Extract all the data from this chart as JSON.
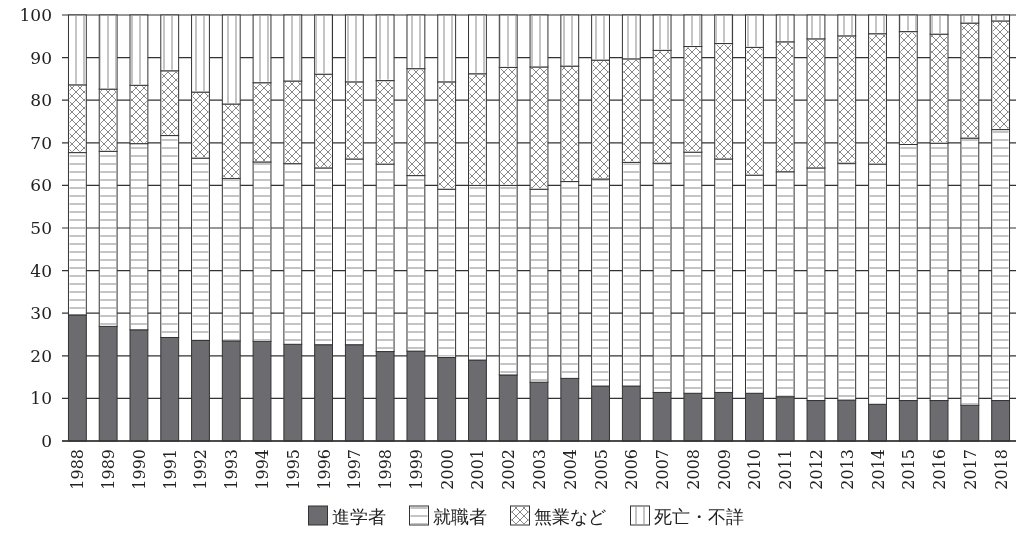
{
  "chart_data": {
    "type": "bar",
    "stacked": true,
    "categories": [
      "1988",
      "1989",
      "1990",
      "1991",
      "1992",
      "1993",
      "1994",
      "1995",
      "1996",
      "1997",
      "1998",
      "1999",
      "2000",
      "2001",
      "2002",
      "2003",
      "2004",
      "2005",
      "2006",
      "2007",
      "2008",
      "2009",
      "2010",
      "2011",
      "2012",
      "2013",
      "2014",
      "2015",
      "2016",
      "2017",
      "2018"
    ],
    "series": [
      {
        "name": "進学者",
        "color": "#6b6b70",
        "values": [
          29.6,
          26.9,
          26.1,
          24.3,
          23.6,
          23.5,
          23.4,
          22.7,
          22.6,
          22.6,
          21.0,
          21.1,
          19.6,
          19.0,
          15.5,
          13.8,
          14.7,
          12.9,
          12.9,
          11.4,
          11.2,
          11.4,
          11.2,
          10.4,
          9.5,
          9.6,
          8.6,
          9.5,
          9.5,
          8.4,
          9.5
        ]
      },
      {
        "name": "就職者",
        "color": "#ffffff",
        "values": [
          38.1,
          41.1,
          43.7,
          47.4,
          42.8,
          38.1,
          42.1,
          42.4,
          41.5,
          43.6,
          44.0,
          41.2,
          39.5,
          41.0,
          44.5,
          45.3,
          46.2,
          48.6,
          52.5,
          53.8,
          56.6,
          54.8,
          51.2,
          52.8,
          54.6,
          55.6,
          56.4,
          60.1,
          60.4,
          62.7,
          63.6
        ]
      },
      {
        "name": "無業など",
        "color": "#ffffff",
        "values": [
          15.9,
          14.6,
          13.7,
          15.2,
          15.5,
          17.5,
          18.6,
          19.4,
          22.0,
          18.1,
          19.6,
          25.1,
          25.2,
          26.2,
          27.7,
          28.7,
          27.1,
          27.9,
          24.3,
          26.5,
          24.8,
          27.1,
          30.0,
          30.5,
          30.3,
          29.9,
          30.6,
          26.5,
          25.6,
          27.0,
          25.5
        ]
      },
      {
        "name": "死亡・不詳",
        "color": "#ffffff",
        "values": [
          16.4,
          17.4,
          16.5,
          13.1,
          18.1,
          20.9,
          15.9,
          15.5,
          13.9,
          15.7,
          15.4,
          12.6,
          15.7,
          13.8,
          12.3,
          12.2,
          12.0,
          10.6,
          10.3,
          8.3,
          7.4,
          6.7,
          7.6,
          6.3,
          5.6,
          4.9,
          4.4,
          3.9,
          4.5,
          1.9,
          1.4
        ]
      }
    ],
    "ylim": [
      0,
      100
    ],
    "yticks": [
      0,
      10,
      20,
      30,
      40,
      50,
      60,
      70,
      80,
      90,
      100
    ],
    "grid": "y",
    "legend": "bottom"
  }
}
